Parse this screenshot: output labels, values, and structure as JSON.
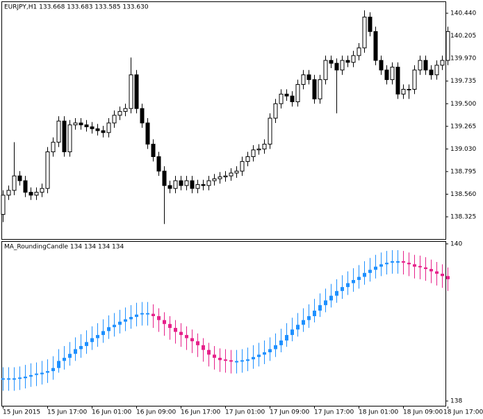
{
  "chart_data": [
    {
      "type": "candlestick",
      "title": "EURJPY,H1  133.668 133.683 133.585 133.630",
      "open": [
        138.35,
        138.55,
        138.6,
        138.75,
        138.7,
        138.58,
        138.55,
        138.58,
        138.62,
        139.0,
        139.1,
        139.32,
        139.0,
        139.28,
        139.3,
        139.28,
        139.26,
        139.24,
        139.22,
        139.2,
        139.3,
        139.38,
        139.42,
        139.45,
        139.8,
        139.45,
        139.3,
        139.08,
        138.95,
        138.8,
        138.65,
        138.62,
        138.7,
        138.65,
        138.7,
        138.62,
        138.66,
        138.65,
        138.7,
        138.72,
        138.74,
        138.75,
        138.78,
        138.8,
        138.9,
        138.95,
        139.02,
        139.03,
        139.08,
        139.35,
        139.5,
        139.6,
        139.58,
        139.52,
        139.7,
        139.8,
        139.75,
        139.55,
        139.75,
        139.95,
        139.92,
        139.85,
        139.95,
        139.93,
        140.0,
        140.08,
        140.4,
        140.25,
        139.95,
        139.85,
        139.75,
        139.88,
        139.6,
        139.65,
        139.65,
        139.85,
        139.95,
        139.85,
        139.8,
        139.9,
        139.95
      ],
      "high": [
        138.6,
        138.65,
        139.1,
        138.8,
        138.75,
        138.63,
        138.63,
        138.67,
        139.05,
        139.15,
        139.37,
        139.37,
        139.33,
        139.35,
        139.35,
        139.33,
        139.31,
        139.29,
        139.27,
        139.35,
        139.43,
        139.47,
        139.5,
        139.98,
        139.85,
        139.5,
        139.35,
        139.13,
        139.0,
        138.85,
        138.7,
        138.75,
        138.75,
        138.75,
        138.75,
        138.71,
        138.71,
        138.75,
        138.77,
        138.79,
        138.8,
        138.83,
        138.85,
        138.95,
        139.0,
        139.07,
        139.08,
        139.13,
        139.4,
        139.55,
        139.65,
        139.65,
        139.63,
        139.75,
        139.85,
        139.85,
        139.8,
        139.8,
        140.0,
        140.0,
        139.97,
        140.0,
        140.0,
        140.05,
        140.13,
        140.47,
        140.45,
        140.3,
        140.0,
        139.9,
        139.93,
        139.93,
        139.7,
        139.7,
        139.9,
        140.0,
        140.0,
        139.9,
        139.95,
        140.0,
        140.3
      ],
      "low": [
        138.27,
        138.5,
        138.55,
        138.65,
        138.53,
        138.5,
        138.5,
        138.53,
        138.57,
        138.95,
        139.05,
        138.95,
        138.95,
        139.23,
        139.23,
        139.21,
        139.19,
        139.17,
        139.15,
        139.15,
        139.25,
        139.33,
        139.37,
        139.4,
        139.4,
        139.25,
        139.03,
        138.9,
        138.75,
        138.25,
        138.57,
        138.57,
        138.6,
        138.6,
        138.57,
        138.57,
        138.6,
        138.6,
        138.65,
        138.67,
        138.69,
        138.7,
        138.73,
        138.75,
        138.85,
        138.9,
        138.97,
        138.98,
        139.03,
        139.3,
        139.45,
        139.53,
        139.47,
        139.47,
        139.65,
        139.7,
        139.5,
        139.5,
        139.7,
        139.87,
        139.4,
        139.8,
        139.88,
        139.88,
        139.95,
        140.03,
        140.2,
        139.9,
        139.8,
        139.7,
        139.7,
        139.55,
        139.55,
        139.55,
        139.6,
        139.8,
        139.8,
        139.75,
        139.75,
        139.85,
        139.9
      ],
      "close": [
        138.55,
        138.6,
        138.75,
        138.7,
        138.58,
        138.55,
        138.58,
        138.62,
        139.0,
        139.1,
        139.32,
        139.0,
        139.28,
        139.3,
        139.28,
        139.26,
        139.24,
        139.22,
        139.2,
        139.3,
        139.38,
        139.42,
        139.45,
        139.8,
        139.45,
        139.3,
        139.08,
        138.95,
        138.8,
        138.65,
        138.62,
        138.7,
        138.65,
        138.7,
        138.62,
        138.66,
        138.65,
        138.7,
        138.72,
        138.74,
        138.75,
        138.78,
        138.8,
        138.9,
        138.95,
        139.02,
        139.03,
        139.08,
        139.35,
        139.5,
        139.6,
        139.58,
        139.52,
        139.7,
        139.8,
        139.75,
        139.55,
        139.75,
        139.95,
        139.92,
        139.85,
        139.95,
        139.93,
        140.0,
        140.08,
        140.4,
        140.25,
        139.95,
        139.85,
        139.75,
        139.88,
        139.6,
        139.65,
        139.65,
        139.85,
        139.95,
        139.85,
        139.8,
        139.9,
        139.95,
        140.25
      ],
      "ylim": [
        138.087,
        140.563
      ],
      "yticks": [
        {
          "value": 140.44,
          "label": "140.440"
        },
        140.205,
        {
          "value": 139.97,
          "label": "139.970"
        },
        139.735,
        {
          "value": 139.5,
          "label": "139.500"
        },
        139.265,
        {
          "value": 139.03,
          "label": "139.030"
        },
        138.795,
        {
          "value": 138.56,
          "label": "138.560"
        },
        138.325
      ],
      "up_color": "#ffffff",
      "down_color": "#000000"
    },
    {
      "type": "rounding-candle",
      "title": "MA_RoundingCandle 134 134 134 134",
      "categories": [
        "15 Jun 2015",
        null,
        null,
        null,
        null,
        null,
        null,
        null,
        "15 Jun 17:00",
        null,
        null,
        null,
        null,
        null,
        null,
        null,
        "16 Jun 01:00",
        null,
        null,
        null,
        null,
        null,
        null,
        null,
        "16 Jun 09:00",
        null,
        null,
        null,
        null,
        null,
        null,
        null,
        "16 Jun 17:00",
        null,
        null,
        null,
        null,
        null,
        null,
        null,
        "17 Jun 01:00",
        null,
        null,
        null,
        null,
        null,
        null,
        null,
        "17 Jun 09:00",
        null,
        null,
        null,
        null,
        null,
        null,
        null,
        "17 Jun 17:00",
        null,
        null,
        null,
        null,
        null,
        null,
        null,
        "18 Jun 01:00",
        null,
        null,
        null,
        null,
        null,
        null,
        null,
        "18 Jun 09:00",
        null,
        null,
        null,
        null,
        null,
        null,
        null,
        "18 Jun 17:00"
      ],
      "values": [
        138.28,
        138.28,
        138.28,
        138.29,
        138.31,
        138.33,
        138.34,
        138.36,
        138.38,
        138.42,
        138.51,
        138.55,
        138.6,
        138.66,
        138.7,
        138.75,
        138.8,
        138.84,
        138.89,
        138.94,
        138.97,
        139.01,
        139.04,
        139.07,
        139.1,
        139.11,
        139.11,
        139.08,
        139.03,
        138.98,
        138.93,
        138.88,
        138.84,
        138.8,
        138.76,
        138.71,
        138.65,
        138.59,
        138.55,
        138.52,
        138.51,
        138.5,
        138.5,
        138.51,
        138.53,
        138.56,
        138.59,
        138.62,
        138.66,
        138.71,
        138.77,
        138.84,
        138.91,
        138.97,
        139.03,
        139.08,
        139.15,
        139.22,
        139.28,
        139.34,
        139.4,
        139.45,
        139.5,
        139.54,
        139.58,
        139.63,
        139.67,
        139.71,
        139.74,
        139.76,
        139.77,
        139.77,
        139.76,
        139.74,
        139.71,
        139.7,
        139.68,
        139.65,
        139.62,
        139.59,
        139.55
      ],
      "wick": 0.15,
      "ylim": [
        137.93,
        140.035
      ],
      "yticks": [
        138,
        140
      ],
      "up_color": "#1e90ff",
      "down_color": "#e6208a"
    }
  ]
}
